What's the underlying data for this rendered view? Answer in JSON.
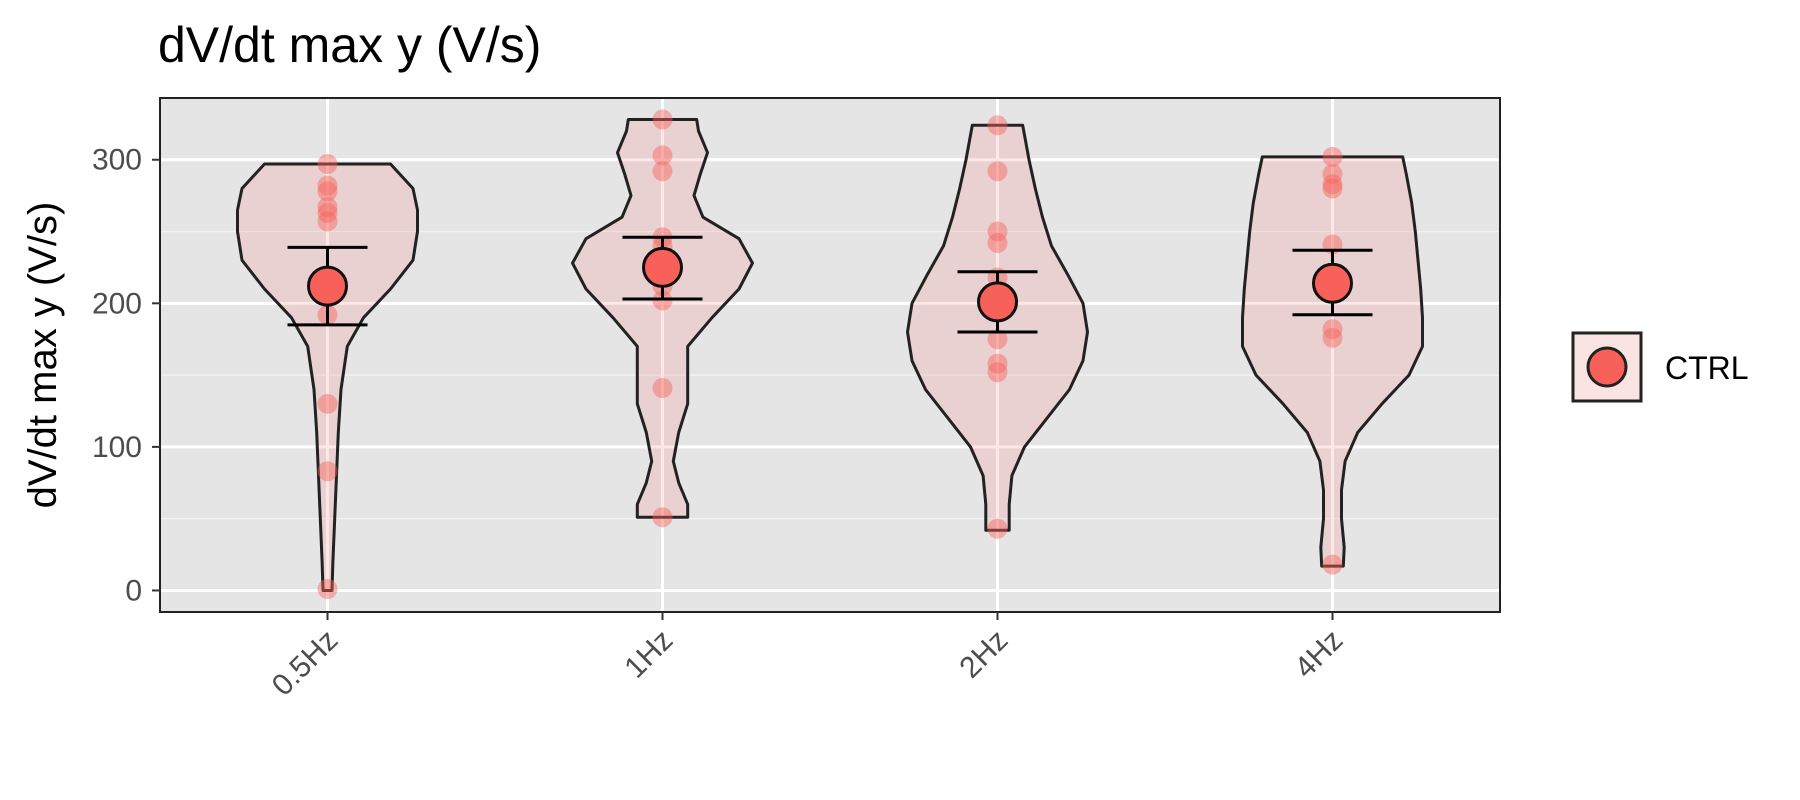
{
  "chart_data": {
    "type": "violin",
    "title": "dV/dt max y (V/s)",
    "xlabel": "",
    "ylabel": "dV/dt max y (V/s)",
    "ylim": [
      -15,
      343
    ],
    "yticks": [
      0,
      100,
      200,
      300
    ],
    "grid": true,
    "legend_position": "right",
    "categories": [
      "0.5Hz",
      "1Hz",
      "2Hz",
      "4Hz"
    ],
    "series": [
      {
        "name": "CTRL",
        "color": "#f8615a",
        "groups": [
          {
            "category": "0.5Hz",
            "points": [
              297,
              282,
              278,
              267,
              263,
              257,
              192,
              130,
              83,
              1
            ],
            "mean": 212,
            "error_low": 185,
            "error_high": 239,
            "violin_range": [
              0,
              297
            ],
            "density": [
              [
                0,
                0.05
              ],
              [
                20,
                0.06
              ],
              [
                50,
                0.08
              ],
              [
                80,
                0.1
              ],
              [
                110,
                0.12
              ],
              [
                140,
                0.15
              ],
              [
                170,
                0.22
              ],
              [
                190,
                0.4
              ],
              [
                210,
                0.7
              ],
              [
                230,
                0.95
              ],
              [
                250,
                1.0
              ],
              [
                265,
                1.0
              ],
              [
                280,
                0.95
              ],
              [
                297,
                0.7
              ]
            ]
          },
          {
            "category": "1Hz",
            "points": [
              328,
              303,
              292,
              246,
              240,
              212,
              202,
              141,
              51
            ],
            "mean": 225,
            "error_low": 203,
            "error_high": 246,
            "violin_range": [
              51,
              328
            ],
            "density": [
              [
                51,
                0.28
              ],
              [
                60,
                0.28
              ],
              [
                75,
                0.18
              ],
              [
                90,
                0.12
              ],
              [
                110,
                0.18
              ],
              [
                130,
                0.28
              ],
              [
                150,
                0.28
              ],
              [
                170,
                0.28
              ],
              [
                190,
                0.55
              ],
              [
                210,
                0.85
              ],
              [
                228,
                1.0
              ],
              [
                245,
                0.85
              ],
              [
                260,
                0.45
              ],
              [
                275,
                0.35
              ],
              [
                290,
                0.42
              ],
              [
                305,
                0.5
              ],
              [
                320,
                0.4
              ],
              [
                328,
                0.38
              ]
            ]
          },
          {
            "category": "2Hz",
            "points": [
              324,
              292,
              250,
              242,
              218,
              175,
              158,
              152,
              43
            ],
            "mean": 201,
            "error_low": 180,
            "error_high": 222,
            "violin_range": [
              42,
              324
            ],
            "density": [
              [
                42,
                0.13
              ],
              [
                60,
                0.13
              ],
              [
                80,
                0.16
              ],
              [
                100,
                0.3
              ],
              [
                120,
                0.55
              ],
              [
                140,
                0.8
              ],
              [
                160,
                0.95
              ],
              [
                180,
                1.0
              ],
              [
                200,
                0.95
              ],
              [
                220,
                0.78
              ],
              [
                240,
                0.6
              ],
              [
                260,
                0.5
              ],
              [
                280,
                0.42
              ],
              [
                300,
                0.35
              ],
              [
                324,
                0.28
              ]
            ]
          },
          {
            "category": "4Hz",
            "points": [
              302,
              290,
              283,
              280,
              241,
              182,
              176,
              18
            ],
            "mean": 214,
            "error_low": 192,
            "error_high": 237,
            "violin_range": [
              17,
              302
            ],
            "density": [
              [
                17,
                0.12
              ],
              [
                30,
                0.13
              ],
              [
                50,
                0.1
              ],
              [
                70,
                0.1
              ],
              [
                90,
                0.14
              ],
              [
                110,
                0.28
              ],
              [
                130,
                0.55
              ],
              [
                150,
                0.85
              ],
              [
                170,
                1.0
              ],
              [
                190,
                1.0
              ],
              [
                210,
                0.98
              ],
              [
                230,
                0.95
              ],
              [
                250,
                0.92
              ],
              [
                270,
                0.88
              ],
              [
                290,
                0.82
              ],
              [
                302,
                0.78
              ]
            ]
          }
        ]
      }
    ]
  }
}
